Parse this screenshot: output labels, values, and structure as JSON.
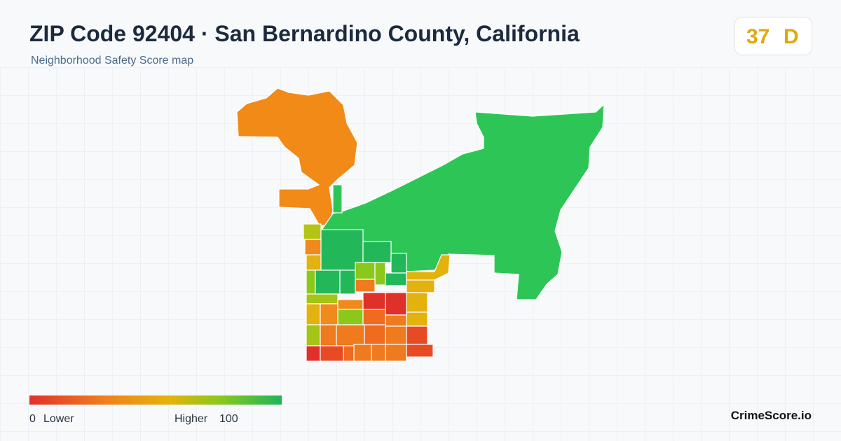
{
  "header": {
    "title": "ZIP Code 92404 · San Bernardino County, California",
    "subtitle": "Neighborhood Safety Score map"
  },
  "score": {
    "value": 37,
    "grade": "D"
  },
  "legend": {
    "min": 0,
    "min_label": "Lower",
    "max_label": "Higher",
    "max": 100
  },
  "brand": "CrimeScore.io"
}
